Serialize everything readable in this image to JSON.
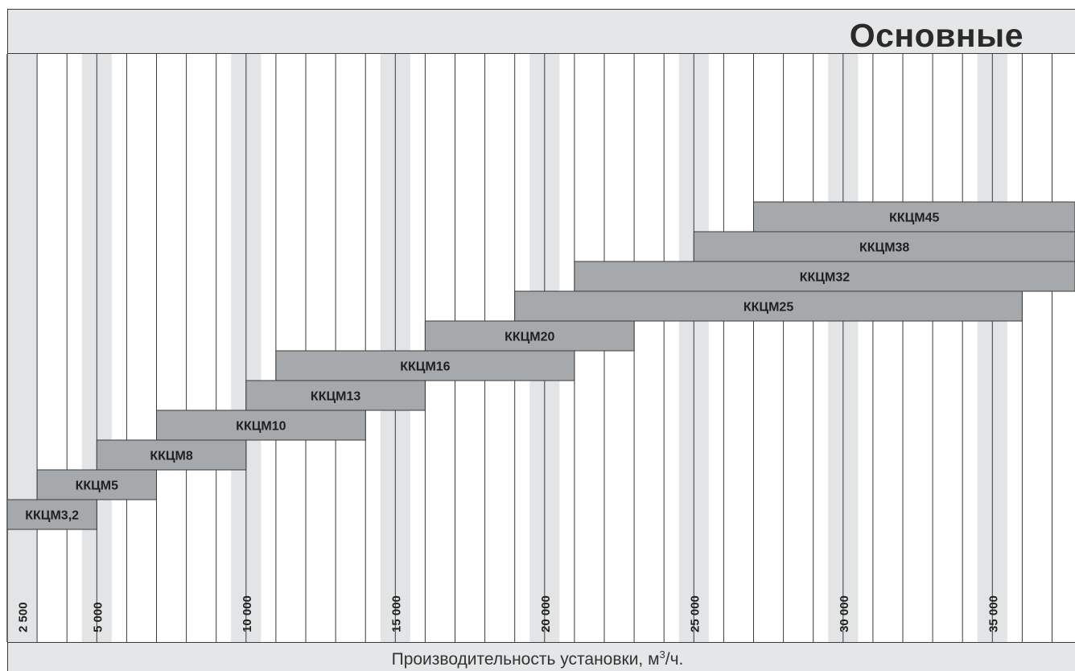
{
  "page": {
    "title": "Основные",
    "x_axis_label_main": "Производительность установки, м",
    "x_axis_label_sup": "3",
    "x_axis_label_tail": "/ч."
  },
  "colors": {
    "bar_fill": "#a6a9ab",
    "grid_shade": "#e2e4e5",
    "header_bg": "#e4e6e7",
    "line": "#3a3a3a"
  },
  "chart_data": {
    "type": "bar",
    "orientation": "horizontal-range",
    "title": "Основные",
    "xlabel": "Производительность установки, м3/ч.",
    "ylabel": "",
    "xlim": [
      2500,
      38500
    ],
    "x_ticks": [
      {
        "value": 2500,
        "label": "2 500"
      },
      {
        "value": 5000,
        "label": "5 000"
      },
      {
        "value": 10000,
        "label": "10 000"
      },
      {
        "value": 15000,
        "label": "15 000"
      },
      {
        "value": 20000,
        "label": "20 000"
      },
      {
        "value": 25000,
        "label": "25 000"
      },
      {
        "value": 30000,
        "label": "30 000"
      },
      {
        "value": 35000,
        "label": "35 000"
      }
    ],
    "grid_step": 1000,
    "grid": true,
    "series": [
      {
        "name": "ККЦМ3,2",
        "start": 2500,
        "end": 5500
      },
      {
        "name": "ККЦМ5",
        "start": 3500,
        "end": 7500
      },
      {
        "name": "ККЦМ8",
        "start": 5500,
        "end": 10500
      },
      {
        "name": "ККЦМ10",
        "start": 7500,
        "end": 14500
      },
      {
        "name": "ККЦМ13",
        "start": 10500,
        "end": 16500
      },
      {
        "name": "ККЦМ16",
        "start": 11500,
        "end": 21500
      },
      {
        "name": "ККЦМ20",
        "start": 16500,
        "end": 23500
      },
      {
        "name": "ККЦМ25",
        "start": 19500,
        "end": 36500
      },
      {
        "name": "ККЦМ32",
        "start": 21500,
        "end": 38500
      },
      {
        "name": "ККЦМ38",
        "start": 25500,
        "end": 38500
      },
      {
        "name": "ККЦМ45",
        "start": 27500,
        "end": 38500
      }
    ]
  }
}
